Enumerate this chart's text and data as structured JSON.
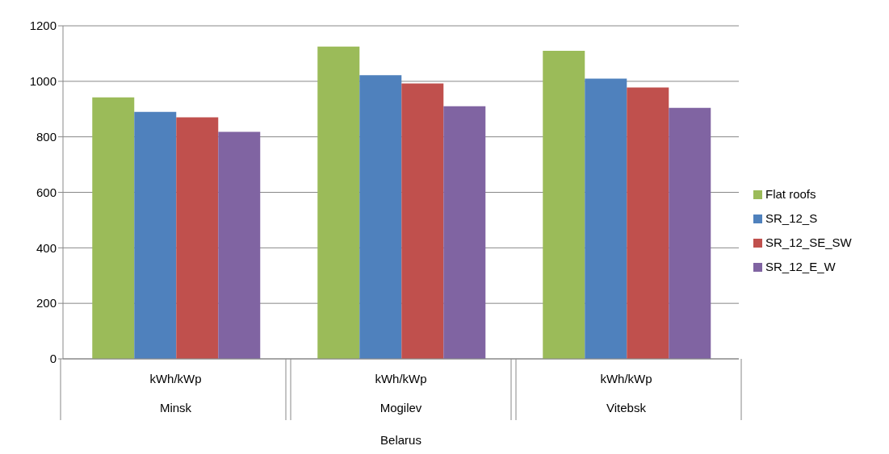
{
  "chart_data": {
    "type": "bar",
    "categories": [
      "Minsk",
      "Mogilev",
      "Vitebsk"
    ],
    "xlabel": "Belarus",
    "series": [
      {
        "name": "Flat roofs",
        "color": "#9bbb59",
        "values": [
          942,
          1125,
          1110
        ]
      },
      {
        "name": "SR_12_S",
        "color": "#4f81bd",
        "values": [
          890,
          1022,
          1010
        ]
      },
      {
        "name": "SR_12_SE_SW",
        "color": "#c0504d",
        "values": [
          870,
          992,
          978
        ]
      },
      {
        "name": "SR_12_E_W",
        "color": "#8064a2",
        "values": [
          818,
          910,
          904
        ]
      }
    ],
    "annotations": [
      "kWh/kWp",
      "kWh/kWp",
      "kWh/kWp"
    ],
    "ylim": [
      0,
      1200
    ],
    "yticks": [
      0,
      200,
      400,
      600,
      800,
      1000,
      1200
    ],
    "grid": "y",
    "legend": "right"
  }
}
